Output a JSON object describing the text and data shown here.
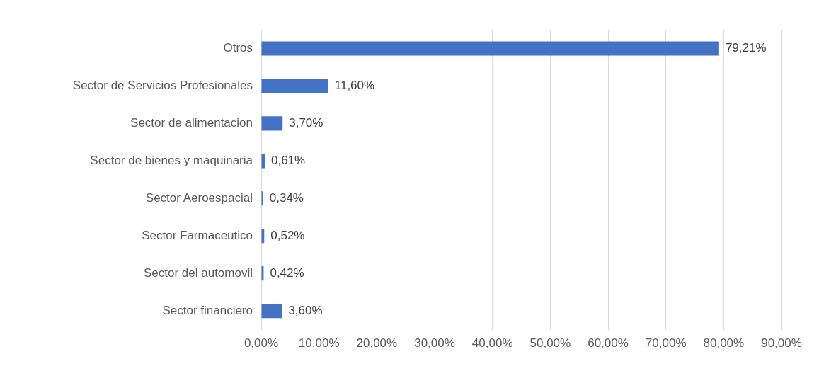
{
  "chart_data": {
    "type": "bar",
    "orientation": "horizontal",
    "categories": [
      "Otros",
      "Sector de Servicios Profesionales",
      "Sector de alimentacion",
      "Sector de bienes y maquinaria",
      "Sector Aeroespacial",
      "Sector Farmaceutico",
      "Sector del automovil",
      "Sector financiero"
    ],
    "values": [
      79.21,
      11.6,
      3.7,
      0.61,
      0.34,
      0.52,
      0.42,
      3.6
    ],
    "value_labels": [
      "79,21%",
      "11,60%",
      "3,70%",
      "0,61%",
      "0,34%",
      "0,52%",
      "0,42%",
      "3,60%"
    ],
    "color": "#4472c4",
    "xlim": [
      0,
      90
    ],
    "xticks": [
      {
        "value": 0,
        "label": "0,00%"
      },
      {
        "value": 10,
        "label": "10,00%"
      },
      {
        "value": 20,
        "label": "20,00%"
      },
      {
        "value": 30,
        "label": "30,00%"
      },
      {
        "value": 40,
        "label": "40,00%"
      },
      {
        "value": 50,
        "label": "50,00%"
      },
      {
        "value": 60,
        "label": "60,00%"
      },
      {
        "value": 70,
        "label": "70,00%"
      },
      {
        "value": 80,
        "label": "80,00%"
      },
      {
        "value": 90,
        "label": "90,00%"
      }
    ],
    "grid": "x",
    "legend": false
  }
}
